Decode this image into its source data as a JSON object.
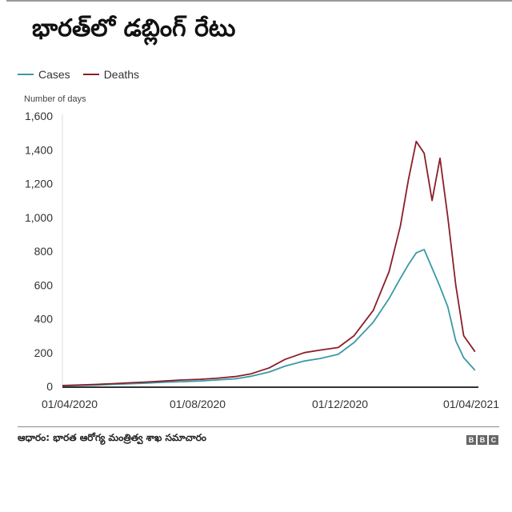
{
  "header": {
    "title": "భారత్‌లో డబ్లింగ్ రేటు"
  },
  "legend": {
    "items": [
      {
        "label": "Cases",
        "color": "#3a9aa6"
      },
      {
        "label": "Deaths",
        "color": "#8a1f2a"
      }
    ]
  },
  "footer": {
    "source": "ఆధారం: భారత ఆరోగ్య మంత్రిత్వ శాఖ సమాచారం",
    "logo": [
      "B",
      "B",
      "C"
    ]
  },
  "chart_data": {
    "type": "line",
    "title": "భారత్‌లో డబ్లింగ్ రేటు",
    "xlabel": "",
    "ylabel": "Number of days",
    "ylim": [
      0,
      1600
    ],
    "yticks": [
      0,
      200,
      400,
      600,
      800,
      1000,
      1200,
      1400,
      1600
    ],
    "ytick_labels": [
      "0",
      "200",
      "400",
      "600",
      "800",
      "1,000",
      "1,200",
      "1,400",
      "1,600"
    ],
    "xtick_labels": [
      "01/04/2020",
      "01/08/2020",
      "01/12/2020",
      "01/04/2021"
    ],
    "grid": false,
    "legend_position": "top-left",
    "x": [
      "2020-04-01",
      "2020-04-15",
      "2020-05-01",
      "2020-05-15",
      "2020-06-01",
      "2020-06-15",
      "2020-07-01",
      "2020-07-15",
      "2020-08-01",
      "2020-08-15",
      "2020-09-01",
      "2020-09-15",
      "2020-10-01",
      "2020-10-15",
      "2020-11-01",
      "2020-11-15",
      "2020-12-01",
      "2020-12-15",
      "2021-01-01",
      "2021-01-15",
      "2021-01-25",
      "2021-02-01",
      "2021-02-08",
      "2021-02-15",
      "2021-02-22",
      "2021-03-01",
      "2021-03-08",
      "2021-03-15",
      "2021-03-22",
      "2021-04-01"
    ],
    "series": [
      {
        "name": "Cases",
        "color": "#3a9aa6",
        "values": [
          3,
          5,
          8,
          12,
          16,
          20,
          25,
          28,
          32,
          38,
          45,
          60,
          85,
          120,
          150,
          165,
          190,
          260,
          380,
          520,
          640,
          720,
          790,
          810,
          700,
          590,
          470,
          270,
          170,
          95
        ]
      },
      {
        "name": "Deaths",
        "color": "#8a1f2a",
        "values": [
          5,
          8,
          12,
          16,
          22,
          26,
          32,
          38,
          42,
          48,
          58,
          75,
          110,
          160,
          200,
          215,
          230,
          300,
          450,
          680,
          950,
          1220,
          1450,
          1380,
          1100,
          1350,
          1000,
          600,
          300,
          205
        ]
      }
    ]
  }
}
